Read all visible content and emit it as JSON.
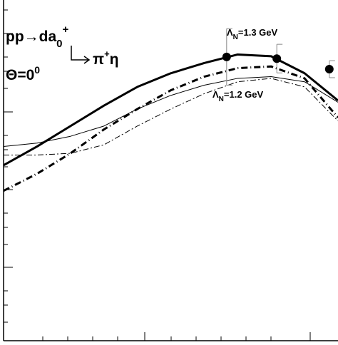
{
  "chart_data": {
    "type": "line",
    "annotations": [
      [
        "pp→da",
        "0",
        "+"
      ],
      [
        "π",
        "+",
        "η"
      ],
      [
        "Θ=0",
        "0"
      ],
      [
        "Λ",
        "N",
        "=1.3 GeV"
      ],
      [
        "Λ",
        "N",
        "=1.2 GeV"
      ]
    ],
    "x": [
      0,
      10,
      20,
      30,
      40,
      50,
      60,
      70,
      80,
      90,
      100
    ],
    "series": [
      {
        "color": "#000000",
        "style": "thick-solid",
        "values": [
          51.5,
          57,
          63,
          69,
          74.5,
          78.5,
          81.5,
          84,
          83.5,
          78.5,
          70.5
        ]
      },
      {
        "color": "#000000",
        "style": "thin-solid",
        "values": [
          57,
          58,
          60,
          63,
          68,
          72,
          75,
          77,
          77.5,
          76,
          70
        ]
      },
      {
        "color": "#000000",
        "style": "thick-dashdot",
        "values": [
          44,
          49,
          55,
          62,
          68,
          73.5,
          77.5,
          80,
          80.5,
          77,
          65.5
        ]
      },
      {
        "color": "#000000",
        "style": "thin-dashdot",
        "values": [
          54.5,
          54.5,
          55,
          57.5,
          63,
          68,
          72.5,
          76,
          77,
          74.5,
          64.5
        ]
      }
    ],
    "points": {
      "color": "#000000",
      "x": [
        66.7,
        81.7,
        97.4
      ],
      "values": [
        83.3,
        82.8,
        79.7
      ],
      "errors": [
        8.3,
        4.2,
        2.5
      ]
    },
    "xlim": [
      0,
      100
    ],
    "ylim": [
      0,
      100
    ]
  }
}
